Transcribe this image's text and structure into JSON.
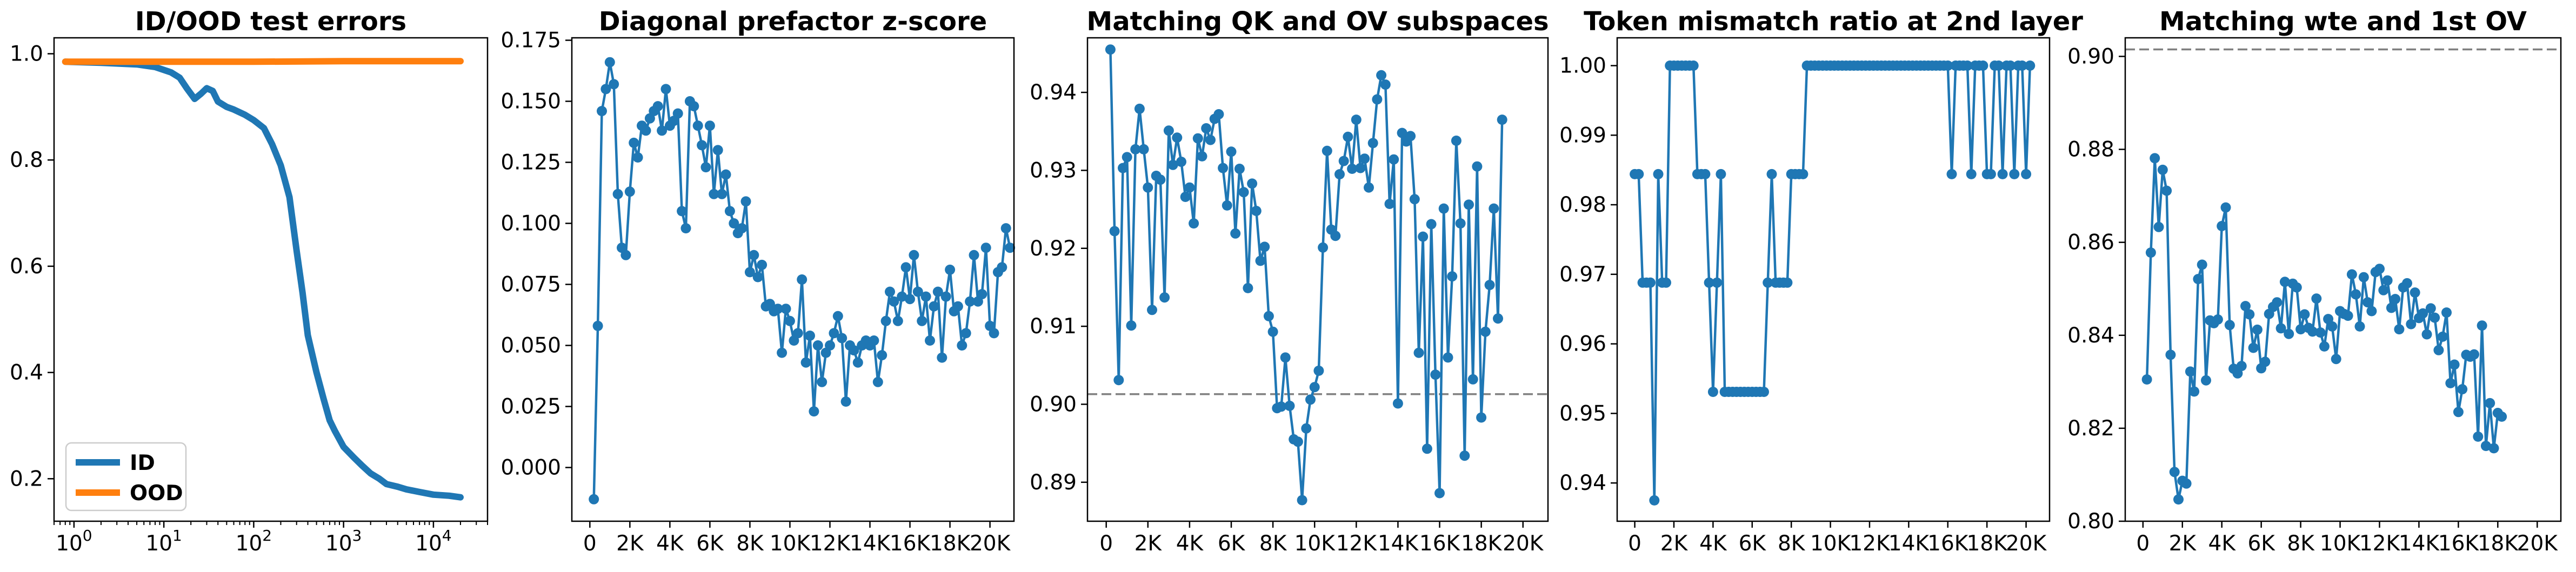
{
  "figure": {
    "background": "#ffffff",
    "colors": {
      "blue": "#1f77b4",
      "orange": "#ff7f0e",
      "ref_line": "#808080"
    }
  },
  "chart_data": [
    {
      "type": "line",
      "title": "ID/OOD test errors",
      "xscale": "log",
      "xlim": [
        0.6,
        40000
      ],
      "ylim": [
        0.12,
        1.03
      ],
      "x_ticks": [
        1,
        10,
        100,
        1000,
        10000
      ],
      "x_tick_labels": [
        [
          "10",
          "0"
        ],
        [
          "10",
          "1"
        ],
        [
          "10",
          "2"
        ],
        [
          "10",
          "3"
        ],
        [
          "10",
          "4"
        ]
      ],
      "y_ticks": [
        0.2,
        0.4,
        0.6,
        0.8,
        1.0
      ],
      "y_tick_labels": [
        "0.2",
        "0.4",
        "0.6",
        "0.8",
        "1.0"
      ],
      "legend": {
        "placement": "lower-left"
      },
      "series": [
        {
          "name": "ID",
          "color": "#1f77b4",
          "x": [
            0.8,
            2,
            5,
            8,
            12,
            15,
            18,
            22,
            26,
            30,
            35,
            40,
            50,
            60,
            80,
            100,
            130,
            160,
            200,
            250,
            300,
            350,
            400,
            500,
            600,
            700,
            800,
            1000,
            1300,
            1600,
            2000,
            2500,
            3000,
            4000,
            5000,
            7000,
            10000,
            15000,
            20000
          ],
          "y": [
            0.985,
            0.983,
            0.98,
            0.975,
            0.965,
            0.955,
            0.935,
            0.915,
            0.925,
            0.935,
            0.93,
            0.91,
            0.9,
            0.895,
            0.885,
            0.875,
            0.86,
            0.83,
            0.79,
            0.73,
            0.63,
            0.55,
            0.47,
            0.4,
            0.35,
            0.31,
            0.29,
            0.26,
            0.24,
            0.225,
            0.21,
            0.2,
            0.19,
            0.185,
            0.18,
            0.175,
            0.17,
            0.168,
            0.165
          ]
        },
        {
          "name": "OOD",
          "color": "#ff7f0e",
          "x": [
            0.8,
            10,
            100,
            1000,
            10000,
            20000
          ],
          "y": [
            0.985,
            0.985,
            0.985,
            0.986,
            0.986,
            0.986
          ]
        }
      ]
    },
    {
      "type": "line",
      "title": "Diagonal prefactor z-score",
      "xlim": [
        -900,
        21200
      ],
      "ylim": [
        -0.022,
        0.176
      ],
      "x_ticks": [
        0,
        2000,
        4000,
        6000,
        8000,
        10000,
        12000,
        14000,
        16000,
        18000,
        20000
      ],
      "x_tick_labels": [
        "0",
        "2K",
        "4K",
        "6K",
        "8K",
        "10K",
        "12K",
        "14K",
        "16K",
        "18K",
        "20K"
      ],
      "y_ticks": [
        0,
        0.025,
        0.05,
        0.075,
        0.1,
        0.125,
        0.15,
        0.175
      ],
      "y_tick_labels": [
        "0.000",
        "0.025",
        "0.050",
        "0.075",
        "0.100",
        "0.125",
        "0.150",
        "0.175"
      ],
      "series": [
        {
          "color": "#1f77b4",
          "x_start": 200,
          "x_step": 200,
          "values": [
            -0.013,
            0.058,
            0.146,
            0.155,
            0.166,
            0.157,
            0.112,
            0.09,
            0.087,
            0.113,
            0.133,
            0.127,
            0.14,
            0.138,
            0.143,
            0.146,
            0.148,
            0.138,
            0.155,
            0.14,
            0.142,
            0.145,
            0.105,
            0.098,
            0.15,
            0.148,
            0.14,
            0.132,
            0.123,
            0.14,
            0.112,
            0.13,
            0.112,
            0.12,
            0.105,
            0.1,
            0.096,
            0.098,
            0.109,
            0.08,
            0.087,
            0.078,
            0.083,
            0.066,
            0.067,
            0.064,
            0.065,
            0.047,
            0.065,
            0.06,
            0.052,
            0.055,
            0.077,
            0.043,
            0.054,
            0.023,
            0.05,
            0.035,
            0.047,
            0.05,
            0.055,
            0.062,
            0.053,
            0.027,
            0.05,
            0.048,
            0.043,
            0.05,
            0.052,
            0.05,
            0.052,
            0.035,
            0.046,
            0.06,
            0.072,
            0.068,
            0.06,
            0.07,
            0.082,
            0.069,
            0.087,
            0.072,
            0.06,
            0.07,
            0.052,
            0.066,
            0.072,
            0.045,
            0.07,
            0.081,
            0.064,
            0.066,
            0.05,
            0.055,
            0.068,
            0.087,
            0.068,
            0.071,
            0.09,
            0.058,
            0.055,
            0.08,
            0.082,
            0.098,
            0.09
          ]
        }
      ]
    },
    {
      "type": "line",
      "title": "Matching QK and OV subspaces",
      "xlim": [
        -900,
        21200
      ],
      "ylim": [
        0.885,
        0.947
      ],
      "x_ticks": [
        0,
        2000,
        4000,
        6000,
        8000,
        10000,
        12000,
        14000,
        16000,
        18000,
        20000
      ],
      "x_tick_labels": [
        "0",
        "2K",
        "4K",
        "6K",
        "8K",
        "10K",
        "12K",
        "14K",
        "16K",
        "18K",
        "20K"
      ],
      "y_ticks": [
        0.89,
        0.9,
        0.91,
        0.92,
        0.93,
        0.94
      ],
      "y_tick_labels": [
        "0.89",
        "0.90",
        "0.91",
        "0.92",
        "0.93",
        "0.94"
      ],
      "reference_line": {
        "y": 0.9013,
        "style": "dashed"
      },
      "series": [
        {
          "color": "#1f77b4",
          "x_start": 200,
          "x_step": 200,
          "values": [
            0.9455,
            0.9222,
            0.9031,
            0.9303,
            0.9317,
            0.9101,
            0.9327,
            0.9379,
            0.9327,
            0.9278,
            0.9121,
            0.9293,
            0.9288,
            0.9137,
            0.9351,
            0.9307,
            0.9342,
            0.9311,
            0.9266,
            0.9278,
            0.9232,
            0.9341,
            0.9318,
            0.9354,
            0.9339,
            0.9366,
            0.9372,
            0.9303,
            0.9255,
            0.9324,
            0.9219,
            0.9302,
            0.9272,
            0.9149,
            0.9283,
            0.9248,
            0.9184,
            0.9202,
            0.9113,
            0.9093,
            0.8995,
            0.8997,
            0.906,
            0.8998,
            0.8955,
            0.8952,
            0.8877,
            0.8969,
            0.9006,
            0.9022,
            0.9043,
            0.9201,
            0.9325,
            0.9224,
            0.9216,
            0.9295,
            0.9312,
            0.9343,
            0.9302,
            0.9365,
            0.9303,
            0.9315,
            0.9278,
            0.9335,
            0.9391,
            0.9422,
            0.941,
            0.9257,
            0.9314,
            0.9001,
            0.9348,
            0.9337,
            0.9344,
            0.9263,
            0.9066,
            0.9215,
            0.8943,
            0.9231,
            0.9038,
            0.8886,
            0.9251,
            0.906,
            0.9164,
            0.9338,
            0.9232,
            0.8934,
            0.9256,
            0.9032,
            0.9305,
            0.8983,
            0.9093,
            0.9153,
            0.9251,
            0.911,
            0.9365
          ]
        }
      ]
    },
    {
      "type": "line",
      "title": "Token mismatch ratio at 2nd layer",
      "xlim": [
        -900,
        21200
      ],
      "ylim": [
        0.9345,
        1.004
      ],
      "x_ticks": [
        0,
        2000,
        4000,
        6000,
        8000,
        10000,
        12000,
        14000,
        16000,
        18000,
        20000
      ],
      "x_tick_labels": [
        "0",
        "2K",
        "4K",
        "6K",
        "8K",
        "10K",
        "12K",
        "14K",
        "16K",
        "18K",
        "20K"
      ],
      "y_ticks": [
        0.94,
        0.95,
        0.96,
        0.97,
        0.98,
        0.99,
        1.0
      ],
      "y_tick_labels": [
        "0.94",
        "0.95",
        "0.96",
        "0.97",
        "0.98",
        "0.99",
        "1.00"
      ],
      "series": [
        {
          "color": "#1f77b4",
          "x_start": 0,
          "x_step": 200,
          "values": [
            0.9844,
            0.9844,
            0.9688,
            0.9688,
            0.9688,
            0.9375,
            0.9844,
            0.9688,
            0.9688,
            1.0,
            1.0,
            1.0,
            1.0,
            1.0,
            1.0,
            1.0,
            0.9844,
            0.9844,
            0.9844,
            0.9688,
            0.9531,
            0.9688,
            0.9844,
            0.9531,
            0.9531,
            0.9531,
            0.9531,
            0.9531,
            0.9531,
            0.9531,
            0.9531,
            0.9531,
            0.9531,
            0.9531,
            0.9688,
            0.9844,
            0.9688,
            0.9688,
            0.9688,
            0.9688,
            0.9844,
            0.9844,
            0.9844,
            0.9844,
            1.0,
            1.0,
            1.0,
            1.0,
            1.0,
            1.0,
            1.0,
            1.0,
            1.0,
            1.0,
            1.0,
            1.0,
            1.0,
            1.0,
            1.0,
            1.0,
            1.0,
            1.0,
            1.0,
            1.0,
            1.0,
            1.0,
            1.0,
            1.0,
            1.0,
            1.0,
            1.0,
            1.0,
            1.0,
            1.0,
            1.0,
            1.0,
            1.0,
            1.0,
            1.0,
            1.0,
            1.0,
            0.9844,
            1.0,
            1.0,
            1.0,
            1.0,
            0.9844,
            1.0,
            1.0,
            1.0,
            0.9844,
            0.9844,
            1.0,
            1.0,
            0.9844,
            1.0,
            1.0,
            0.9844,
            1.0,
            1.0,
            0.9844,
            1.0
          ]
        }
      ]
    },
    {
      "type": "line",
      "title": "Matching wte and 1st OV",
      "xlim": [
        -900,
        21200
      ],
      "ylim": [
        0.8,
        0.904
      ],
      "x_ticks": [
        0,
        2000,
        4000,
        6000,
        8000,
        10000,
        12000,
        14000,
        16000,
        18000,
        20000
      ],
      "x_tick_labels": [
        "0",
        "2K",
        "4K",
        "6K",
        "8K",
        "10K",
        "12K",
        "14K",
        "16K",
        "18K",
        "20K"
      ],
      "y_ticks": [
        0.8,
        0.82,
        0.84,
        0.86,
        0.88,
        0.9
      ],
      "y_tick_labels": [
        "0.80",
        "0.82",
        "0.84",
        "0.86",
        "0.88",
        "0.90"
      ],
      "reference_line": {
        "y": 0.9015,
        "style": "dashed"
      },
      "series": [
        {
          "color": "#1f77b4",
          "x_start": 200,
          "x_step": 200,
          "values": [
            0.8305,
            0.8578,
            0.8781,
            0.8633,
            0.8756,
            0.8711,
            0.8358,
            0.8106,
            0.8047,
            0.8087,
            0.8081,
            0.8322,
            0.8279,
            0.8521,
            0.8552,
            0.8303,
            0.8432,
            0.8426,
            0.8434,
            0.8635,
            0.8675,
            0.8422,
            0.8328,
            0.8318,
            0.8334,
            0.8463,
            0.8445,
            0.8373,
            0.8412,
            0.8329,
            0.8343,
            0.8446,
            0.8461,
            0.8471,
            0.8415,
            0.8515,
            0.8403,
            0.8511,
            0.8503,
            0.8413,
            0.8445,
            0.8416,
            0.8408,
            0.8479,
            0.8406,
            0.8376,
            0.8435,
            0.8419,
            0.8349,
            0.8452,
            0.8446,
            0.8442,
            0.8531,
            0.8488,
            0.8419,
            0.8525,
            0.8471,
            0.8452,
            0.8536,
            0.8543,
            0.8497,
            0.8518,
            0.8459,
            0.8478,
            0.8413,
            0.8503,
            0.8512,
            0.8424,
            0.8492,
            0.8437,
            0.8447,
            0.8402,
            0.8458,
            0.8438,
            0.8368,
            0.8397,
            0.8449,
            0.8297,
            0.8337,
            0.8235,
            0.8284,
            0.8358,
            0.8354,
            0.8359,
            0.8182,
            0.8421,
            0.8162,
            0.8254,
            0.8157,
            0.8233,
            0.8225
          ]
        }
      ]
    }
  ]
}
